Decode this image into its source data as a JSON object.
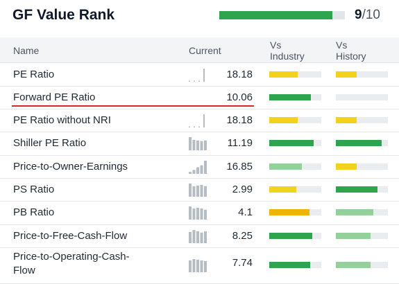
{
  "header": {
    "title": "GF Value Rank",
    "rank_fraction": 0.9,
    "rank_value": "9",
    "rank_denominator": "/10"
  },
  "table": {
    "columns": {
      "name": "Name",
      "current": "Current",
      "vs_industry": "Vs\nIndustry",
      "vs_history": "Vs\nHistory"
    },
    "colors": {
      "green": "#2ea44f",
      "light_green": "#94d09a",
      "yellow": "#f2d21b",
      "orange": "#f0b400",
      "sparkline": "#b6bcc3",
      "track": "#e9edf0",
      "highlight": "#d9262a"
    },
    "rows": [
      {
        "name": "PE Ratio",
        "value": "18.18",
        "spark": [
          0.05,
          0.05,
          0.05,
          1.0
        ],
        "industry": {
          "level": 0.55,
          "color": "#f2d21b"
        },
        "history": {
          "level": 0.4,
          "color": "#f2d21b"
        }
      },
      {
        "name": "Forward PE Ratio",
        "value": "10.06",
        "spark": [],
        "industry": {
          "level": 0.8,
          "color": "#2ea44f"
        },
        "history": {
          "level": 0.0,
          "color": "#2ea44f"
        }
      },
      {
        "name": "PE Ratio without NRI",
        "value": "18.18",
        "spark": [
          0.05,
          0.05,
          0.05,
          1.0
        ],
        "industry": {
          "level": 0.55,
          "color": "#f2d21b"
        },
        "history": {
          "level": 0.4,
          "color": "#f2d21b"
        }
      },
      {
        "name": "Shiller PE Ratio",
        "value": "11.19",
        "spark": [
          1.0,
          0.8,
          0.75,
          0.7,
          0.75
        ],
        "industry": {
          "level": 0.85,
          "color": "#2ea44f"
        },
        "history": {
          "level": 0.88,
          "color": "#2ea44f"
        }
      },
      {
        "name": "Price-to-Owner-Earnings",
        "value": "16.85",
        "spark": [
          0.15,
          0.3,
          0.5,
          0.65,
          1.0
        ],
        "industry": {
          "level": 0.62,
          "color": "#94d09a"
        },
        "history": {
          "level": 0.4,
          "color": "#f2d21b"
        }
      },
      {
        "name": "PS Ratio",
        "value": "2.99",
        "spark": [
          1.0,
          0.8,
          0.85,
          0.9,
          0.8
        ],
        "industry": {
          "level": 0.52,
          "color": "#f2d21b"
        },
        "history": {
          "level": 0.8,
          "color": "#2ea44f"
        }
      },
      {
        "name": "PB Ratio",
        "value": "4.1",
        "spark": [
          1.0,
          0.85,
          0.9,
          0.85,
          0.75
        ],
        "industry": {
          "level": 0.77,
          "color": "#f0b400"
        },
        "history": {
          "level": 0.72,
          "color": "#94d09a"
        }
      },
      {
        "name": "Price-to-Free-Cash-Flow",
        "value": "8.25",
        "spark": [
          0.85,
          1.0,
          0.9,
          0.8,
          0.9
        ],
        "industry": {
          "level": 0.82,
          "color": "#2ea44f"
        },
        "history": {
          "level": 0.66,
          "color": "#94d09a"
        }
      },
      {
        "name": "Price-to-Operating-Cash-\nFlow",
        "value": "7.74",
        "spark": [
          0.9,
          1.0,
          0.95,
          0.9,
          0.85
        ],
        "industry": {
          "level": 0.78,
          "color": "#2ea44f"
        },
        "history": {
          "level": 0.66,
          "color": "#94d09a"
        }
      }
    ]
  }
}
